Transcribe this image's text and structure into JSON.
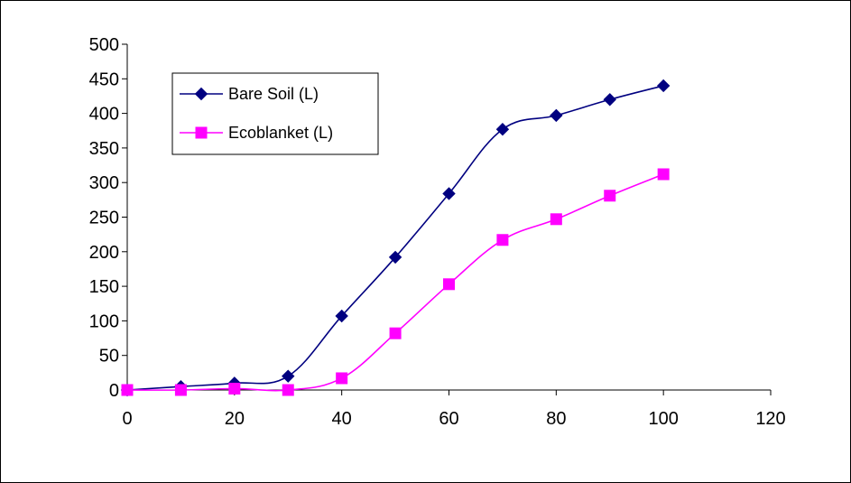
{
  "chart_data": {
    "type": "line",
    "title": "",
    "xlabel": "",
    "ylabel": "",
    "xlim": [
      0,
      120
    ],
    "ylim": [
      0,
      500
    ],
    "x_ticks": [
      0,
      20,
      40,
      60,
      80,
      100,
      120
    ],
    "y_ticks": [
      0,
      50,
      100,
      150,
      200,
      250,
      300,
      350,
      400,
      450,
      500
    ],
    "grid": false,
    "legend_position": "top-left",
    "series": [
      {
        "name": "Bare Soil (L)",
        "color": "#000080",
        "marker": "diamond",
        "x": [
          0,
          10,
          20,
          30,
          40,
          50,
          60,
          70,
          80,
          90,
          100
        ],
        "values": [
          0,
          5,
          10,
          20,
          107,
          192,
          284,
          377,
          397,
          420,
          440
        ]
      },
      {
        "name": "Ecoblanket (L)",
        "color": "#FF00FF",
        "marker": "square",
        "x": [
          0,
          10,
          20,
          30,
          40,
          50,
          60,
          70,
          80,
          90,
          100
        ],
        "values": [
          0,
          0,
          2,
          0,
          17,
          82,
          153,
          217,
          247,
          281,
          312
        ]
      }
    ]
  }
}
